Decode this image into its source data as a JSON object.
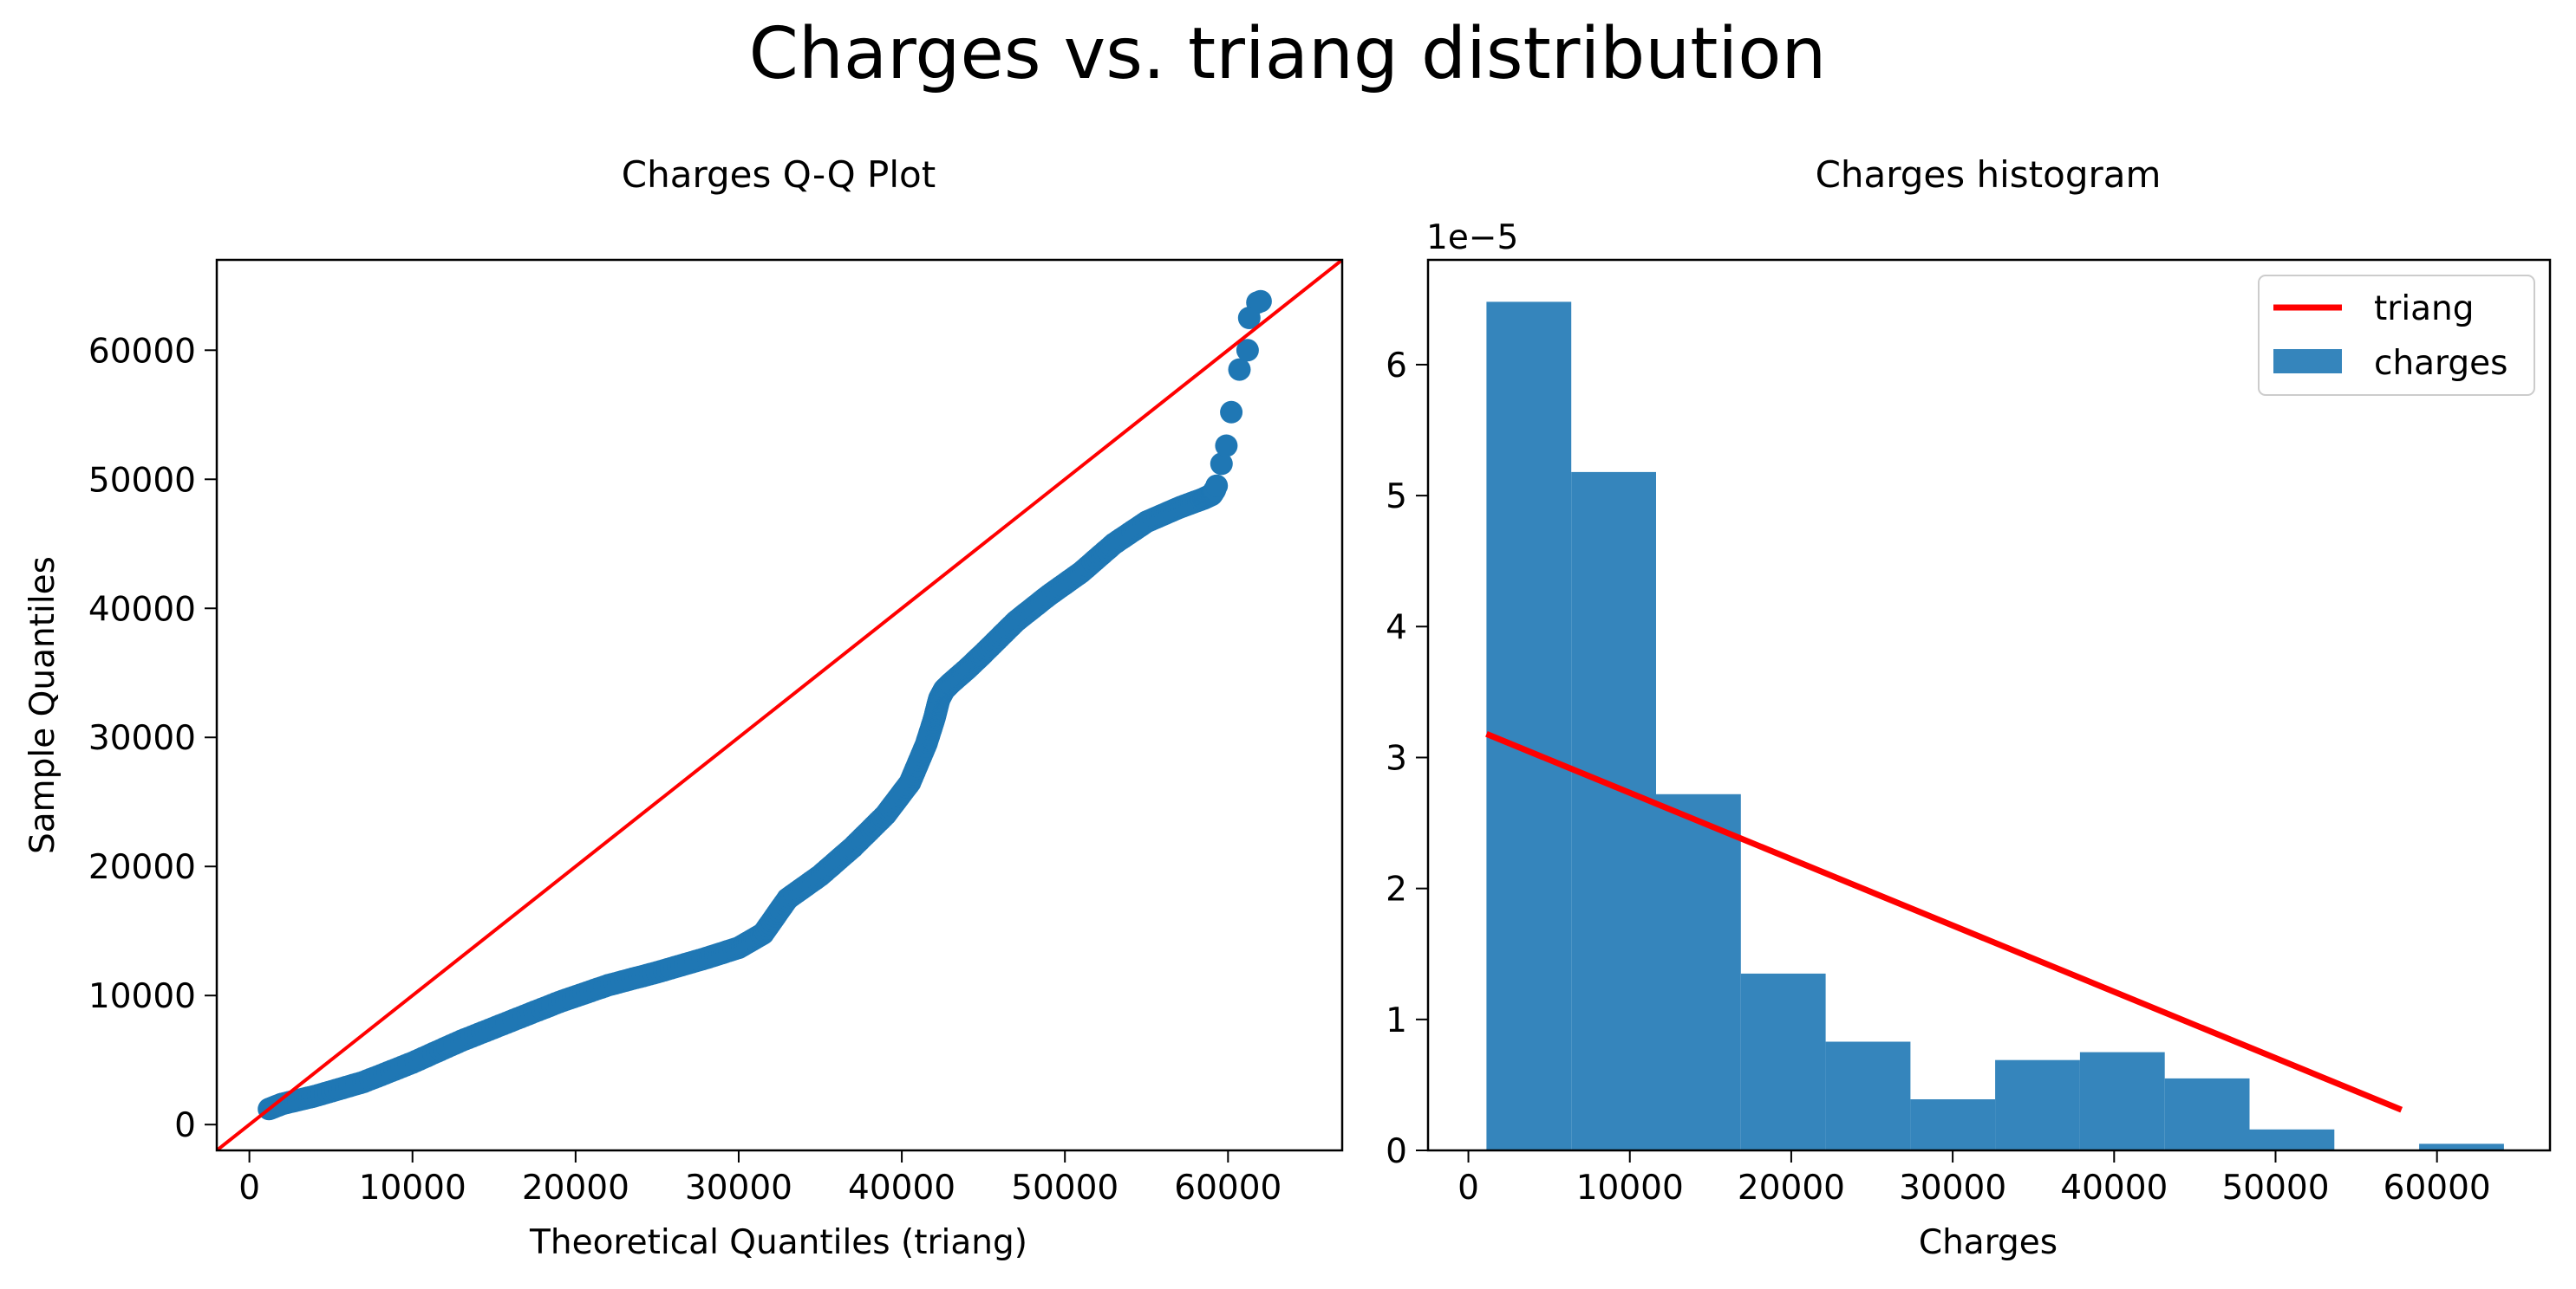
{
  "figure": {
    "suptitle": "Charges vs. triang distribution"
  },
  "colors": {
    "points": "#1f77b4",
    "bars": "#3585bc",
    "reference_line": "#ff0000",
    "pdf_line": "#ff0000",
    "axes": "#000000",
    "background": "#ffffff"
  },
  "chart_data": [
    {
      "type": "scatter",
      "title": "Charges Q-Q Plot",
      "xlabel": "Theoretical Quantiles (triang)",
      "ylabel": "Sample Quantiles",
      "xlim": [
        -2000,
        67000
      ],
      "ylim": [
        -2000,
        67000
      ],
      "xticks": [
        0,
        10000,
        20000,
        30000,
        40000,
        50000,
        60000
      ],
      "yticks": [
        0,
        10000,
        20000,
        30000,
        40000,
        50000,
        60000
      ],
      "grid": false,
      "reference_line": {
        "label": "",
        "x": [
          -2000,
          67000
        ],
        "y": [
          -2000,
          67000
        ]
      },
      "curve_knots": {
        "x": [
          1200,
          2000,
          4000,
          7000,
          10000,
          13000,
          16000,
          19000,
          22000,
          25000,
          28000,
          30000,
          31500,
          33000,
          35000,
          37000,
          39000,
          40500,
          41500,
          42000,
          42300,
          42600,
          43000,
          44000,
          45000,
          47000,
          49000,
          51000,
          53000,
          55000,
          57000,
          58500,
          59000,
          59200
        ],
        "y": [
          1200,
          1600,
          2200,
          3300,
          4800,
          6500,
          8000,
          9500,
          10800,
          11800,
          12900,
          13700,
          14800,
          17500,
          19300,
          21500,
          24000,
          26500,
          29500,
          31500,
          33000,
          33700,
          34200,
          35300,
          36500,
          39000,
          41000,
          42800,
          45000,
          46700,
          47800,
          48500,
          48800,
          49200
        ]
      },
      "tail_points": {
        "x": [
          59300,
          59600,
          59900,
          60200,
          60700,
          61200,
          61800
        ],
        "y": [
          49500,
          51200,
          52600,
          55200,
          58500,
          60000,
          63700
        ]
      },
      "extra_tail_points": {
        "x": [
          61300,
          62000
        ],
        "y": [
          62500,
          63800
        ]
      }
    },
    {
      "type": "bar",
      "title": "Charges histogram",
      "xlabel": "Charges",
      "ylabel": "",
      "y_offset_label": "1e−5",
      "xlim": [
        -2500,
        67000
      ],
      "ylim": [
        0,
        6.8
      ],
      "xticks": [
        0,
        10000,
        20000,
        30000,
        40000,
        50000,
        60000
      ],
      "yticks": [
        0,
        1,
        2,
        3,
        4,
        5,
        6
      ],
      "grid": false,
      "bin_edges": [
        1122,
        6374,
        11626,
        16878,
        22130,
        27382,
        32634,
        37886,
        43138,
        48390,
        53642,
        58894,
        64146
      ],
      "series": [
        {
          "name": "charges",
          "values": [
            6.48,
            5.18,
            2.72,
            1.35,
            0.83,
            0.39,
            0.69,
            0.75,
            0.55,
            0.16,
            0.0,
            0.05
          ]
        }
      ],
      "pdf_line": {
        "name": "triang",
        "x": [
          1122,
          57800
        ],
        "y": [
          3.18,
          0.31
        ]
      },
      "legend": {
        "placement": "top-right",
        "entries": [
          "triang",
          "charges"
        ]
      }
    }
  ]
}
